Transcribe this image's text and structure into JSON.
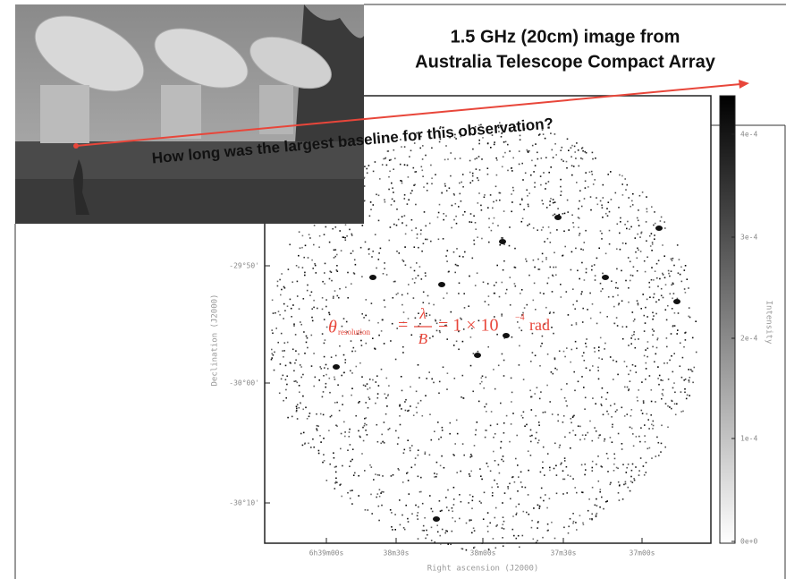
{
  "slide": {
    "title_lines": [
      "1.5 GHz (20cm) image from",
      "Australia Telescope Compact Array"
    ],
    "question": "How long was the largest baseline for this observation?",
    "formula": {
      "theta": "θ",
      "sub": "resolution",
      "eq1": "=",
      "num": "λ",
      "den": "B",
      "rest": "= 1 × 10",
      "exp": "−4",
      "unit": "rad"
    }
  },
  "image": {
    "x_label": "Right ascension (J2000)",
    "y_label": "Declination (J2000)",
    "colorbar_label": "Intensity",
    "x_ticks": [
      "6h39m00s",
      "38m30s",
      "38m00s",
      "37m30s",
      "37m00s"
    ],
    "y_ticks": [
      "-29°50'",
      "-30°00'",
      "-30°10'"
    ],
    "colorbar_ticks": [
      "4e-4",
      "3e-4",
      "2e-4",
      "1e-4",
      "0e+0"
    ]
  }
}
